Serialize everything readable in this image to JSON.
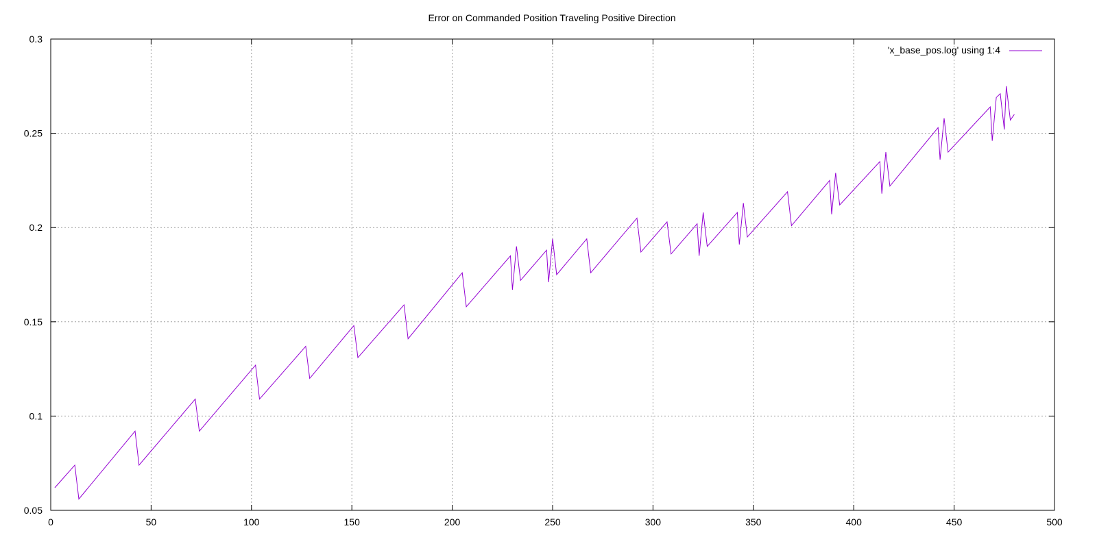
{
  "chart_data": {
    "type": "line",
    "title": "Error on Commanded Position Traveling Positive Direction",
    "xlabel": "",
    "ylabel": "",
    "xlim": [
      0,
      500
    ],
    "ylim": [
      0.05,
      0.3
    ],
    "x_ticks": [
      0,
      50,
      100,
      150,
      200,
      250,
      300,
      350,
      400,
      450,
      500
    ],
    "y_ticks": [
      0.05,
      0.1,
      0.15,
      0.2,
      0.25,
      0.3
    ],
    "x_tick_labels": [
      "0",
      "50",
      "100",
      "150",
      "200",
      "250",
      "300",
      "350",
      "400",
      "450",
      "500"
    ],
    "y_tick_labels": [
      "0.05",
      "0.1",
      "0.15",
      "0.2",
      "0.25",
      "0.3"
    ],
    "grid": true,
    "legend_position": "top-right",
    "series": [
      {
        "name": "'x_base_pos.log' using 1:4",
        "color": "#9400d3",
        "x": [
          2,
          12,
          14,
          42,
          44,
          72,
          74,
          102,
          104,
          127,
          129,
          151,
          153,
          176,
          178,
          205,
          207,
          229,
          230,
          232,
          234,
          247,
          248,
          250,
          252,
          267,
          269,
          292,
          294,
          307,
          309,
          322,
          323,
          325,
          327,
          342,
          343,
          345,
          347,
          367,
          369,
          388,
          389,
          391,
          393,
          413,
          414,
          416,
          418,
          442,
          443,
          445,
          447,
          468,
          469,
          471,
          473,
          475,
          476,
          478,
          480
        ],
        "y": [
          0.062,
          0.074,
          0.056,
          0.092,
          0.074,
          0.109,
          0.092,
          0.127,
          0.109,
          0.137,
          0.12,
          0.148,
          0.131,
          0.159,
          0.141,
          0.176,
          0.158,
          0.185,
          0.167,
          0.19,
          0.172,
          0.188,
          0.171,
          0.194,
          0.175,
          0.194,
          0.176,
          0.205,
          0.187,
          0.203,
          0.186,
          0.202,
          0.185,
          0.208,
          0.19,
          0.208,
          0.191,
          0.213,
          0.195,
          0.219,
          0.201,
          0.225,
          0.207,
          0.229,
          0.212,
          0.235,
          0.218,
          0.24,
          0.222,
          0.253,
          0.236,
          0.258,
          0.24,
          0.264,
          0.246,
          0.269,
          0.271,
          0.252,
          0.275,
          0.257,
          0.26
        ]
      }
    ]
  }
}
